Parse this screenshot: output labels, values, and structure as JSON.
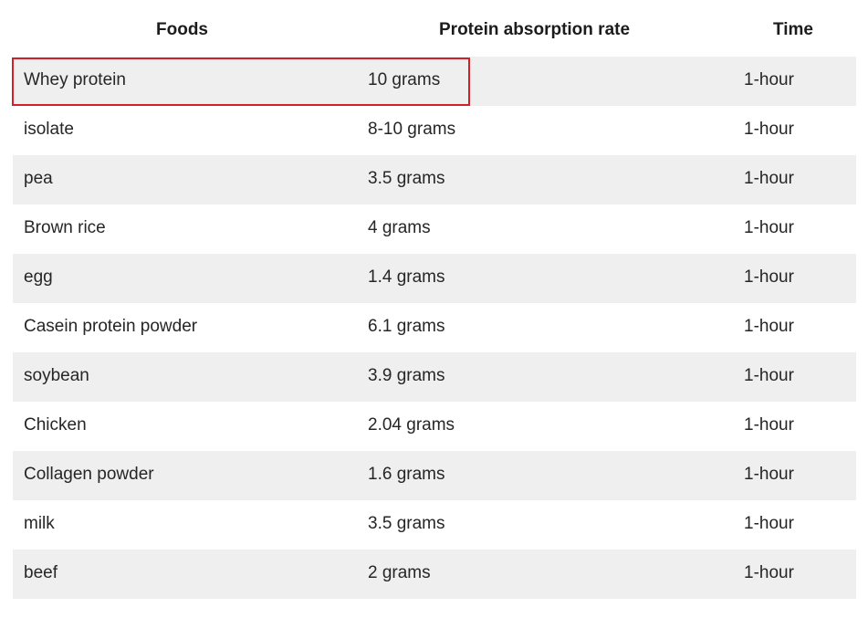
{
  "table": {
    "headers": [
      "Foods",
      "Protein absorption rate",
      "Time"
    ],
    "rows": [
      {
        "food": "Whey protein",
        "rate": "10 grams",
        "time": "1-hour"
      },
      {
        "food": "isolate",
        "rate": "8-10 grams",
        "time": "1-hour"
      },
      {
        "food": "pea",
        "rate": "3.5 grams",
        "time": "1-hour"
      },
      {
        "food": "Brown rice",
        "rate": "4 grams",
        "time": "1-hour"
      },
      {
        "food": "egg",
        "rate": "1.4 grams",
        "time": "1-hour"
      },
      {
        "food": "Casein protein powder",
        "rate": "6.1 grams",
        "time": "1-hour"
      },
      {
        "food": "soybean",
        "rate": "3.9 grams",
        "time": "1-hour"
      },
      {
        "food": "Chicken",
        "rate": "2.04 grams",
        "time": "1-hour"
      },
      {
        "food": "Collagen powder",
        "rate": "1.6 grams",
        "time": "1-hour"
      },
      {
        "food": "milk",
        "rate": "3.5 grams",
        "time": "1-hour"
      },
      {
        "food": "beef",
        "rate": "2 grams",
        "time": "1-hour"
      }
    ]
  },
  "highlight": {
    "color": "#d0202a",
    "target_row": 0
  },
  "colors": {
    "stripe": "#efefef",
    "text": "#262626"
  }
}
